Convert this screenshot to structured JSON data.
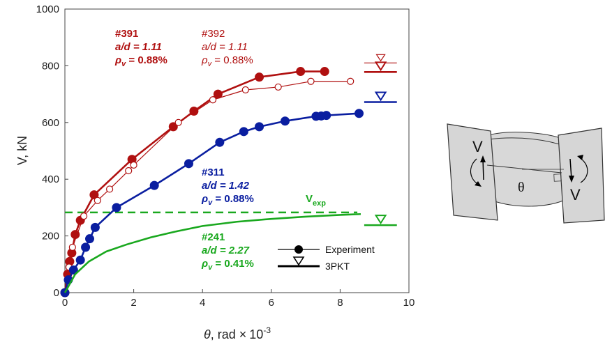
{
  "chart_data": {
    "type": "line",
    "xlabel_var": "θ",
    "xlabel_unit": ", rad ×",
    "xlabel_pow": "10",
    "xlabel_exp": "-3",
    "ylabel": "V, kN",
    "xlim": [
      0,
      10
    ],
    "ylim": [
      0,
      1000
    ],
    "xticks": [
      "0",
      "2",
      "4",
      "6",
      "8",
      "10"
    ],
    "yticks": [
      "0",
      "200",
      "400",
      "600",
      "800",
      "1000"
    ],
    "grid": false,
    "colors": {
      "red": "#b01010",
      "blue": "#0a1ea0",
      "green": "#19a81e"
    },
    "series": [
      {
        "name": "#391",
        "color": "#b01010",
        "marker": "filled",
        "x": [
          0,
          0.08,
          0.14,
          0.2,
          0.3,
          0.45,
          0.85,
          1.95,
          3.15,
          3.75,
          4.45,
          5.65,
          6.85,
          7.55
        ],
        "y": [
          0,
          65,
          110,
          140,
          205,
          255,
          345,
          470,
          585,
          640,
          700,
          760,
          780,
          780
        ]
      },
      {
        "name": "#392",
        "color": "#b01010",
        "marker": "open",
        "x": [
          0,
          0.12,
          0.22,
          0.55,
          0.95,
          1.3,
          1.85,
          2.0,
          3.3,
          4.3,
          5.25,
          6.2,
          7.15,
          8.3
        ],
        "y": [
          0,
          90,
          160,
          270,
          325,
          365,
          430,
          450,
          600,
          680,
          715,
          725,
          745,
          745
        ]
      },
      {
        "name": "#311",
        "color": "#0a1ea0",
        "marker": "filled",
        "x": [
          0,
          0.1,
          0.25,
          0.45,
          0.6,
          0.72,
          0.88,
          1.5,
          2.6,
          3.6,
          4.5,
          5.2,
          5.65,
          6.4,
          7.3,
          7.45,
          7.6,
          8.55
        ],
        "y": [
          0,
          45,
          80,
          115,
          160,
          190,
          230,
          300,
          378,
          455,
          530,
          568,
          585,
          605,
          622,
          623,
          625,
          632
        ]
      },
      {
        "name": "#241",
        "color": "#19a81e",
        "marker": "none",
        "x": [
          0,
          0.3,
          0.7,
          1.2,
          1.8,
          2.5,
          3.2,
          4,
          5,
          6,
          7,
          8,
          8.6
        ],
        "y": [
          0,
          65,
          110,
          145,
          170,
          195,
          215,
          235,
          250,
          260,
          268,
          274,
          277
        ]
      }
    ],
    "pkt_3": [
      {
        "series": "#392",
        "y": 810,
        "style": "thin",
        "color": "#b01010"
      },
      {
        "series": "#391",
        "y": 778,
        "style": "thick",
        "color": "#b01010"
      },
      {
        "series": "#311",
        "y": 672,
        "style": "thick",
        "color": "#0a1ea0"
      },
      {
        "series": "#241",
        "y": 238,
        "style": "thick",
        "color": "#19a81e"
      }
    ],
    "v_exp": {
      "y": 283,
      "label": "V",
      "sub": "exp",
      "color": "#19a81e"
    },
    "annotations": [
      {
        "id": "#391",
        "label": "#391",
        "ad": "a/d = 1.11",
        "rho_sym": "ρ",
        "rho_sub": "v",
        "rho_val": " = 0.88%",
        "bold": true,
        "color": "#b01010"
      },
      {
        "id": "#392",
        "label": "#392",
        "ad": "a/d = 1.11",
        "rho_sym": "ρ",
        "rho_sub": "v",
        "rho_val": " = 0.88%",
        "bold": false,
        "color": "#b01010"
      },
      {
        "id": "#311",
        "label": "#311",
        "ad": "a/d = 1.42",
        "rho_sym": "ρ",
        "rho_sub": "v",
        "rho_val": " = 0.88%",
        "bold": true,
        "color": "#0a1ea0"
      },
      {
        "id": "#241",
        "label": "#241",
        "ad": "a/d = 2.27",
        "rho_sym": "ρ",
        "rho_sub": "v",
        "rho_val": " = 0.41%",
        "bold": true,
        "color": "#19a81e"
      }
    ],
    "legend": {
      "position": "bottom-right",
      "items": [
        "Experiment",
        "3PKT"
      ]
    }
  },
  "diagram": {
    "left_label": "V",
    "right_label": "V",
    "angle_label": "θ"
  }
}
